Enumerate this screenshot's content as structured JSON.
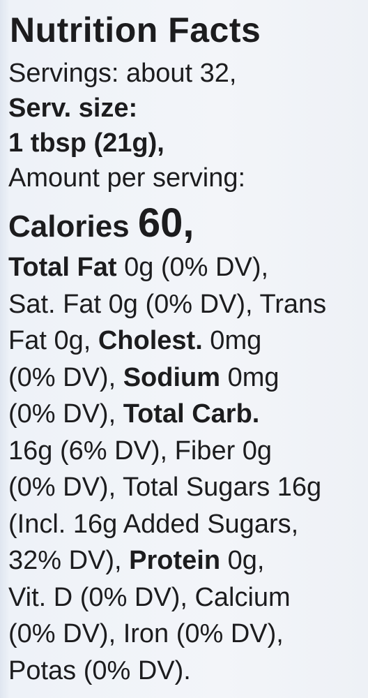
{
  "title": "Nutrition Facts",
  "lines": [
    [
      {
        "text": "Servings: about 32,"
      }
    ],
    [
      {
        "text": "Serv. size:",
        "style": "bold"
      }
    ],
    [
      {
        "text": "1 tbsp (21g),",
        "style": "bold"
      }
    ],
    [
      {
        "text": "Amount per serving:"
      }
    ],
    [
      {
        "text": "Calories ",
        "style": "bold"
      },
      {
        "text": "60,",
        "style": "large"
      }
    ],
    [
      {
        "text": "Total Fat",
        "style": "bold"
      },
      {
        "text": " 0g (0% DV),"
      }
    ],
    [
      {
        "text": "Sat. Fat 0g (0% DV), Trans"
      }
    ],
    [
      {
        "text": "Fat 0g, "
      },
      {
        "text": "Cholest.",
        "style": "bold"
      },
      {
        "text": " 0mg"
      }
    ],
    [
      {
        "text": "(0% DV), "
      },
      {
        "text": "Sodium",
        "style": "bold"
      },
      {
        "text": " 0mg"
      }
    ],
    [
      {
        "text": "(0% DV), "
      },
      {
        "text": "Total Carb.",
        "style": "bold"
      }
    ],
    [
      {
        "text": "16g (6% DV), Fiber 0g"
      }
    ],
    [
      {
        "text": "(0% DV), Total Sugars 16g"
      }
    ],
    [
      {
        "text": "(Incl. 16g Added Sugars,"
      }
    ],
    [
      {
        "text": "32% DV), "
      },
      {
        "text": "Protein",
        "style": "bold"
      },
      {
        "text": " 0g,"
      }
    ],
    [
      {
        "text": "Vit. D (0% DV), Calcium"
      }
    ],
    [
      {
        "text": "(0% DV), Iron (0% DV),"
      }
    ],
    [
      {
        "text": "Potas (0% DV)."
      }
    ]
  ]
}
